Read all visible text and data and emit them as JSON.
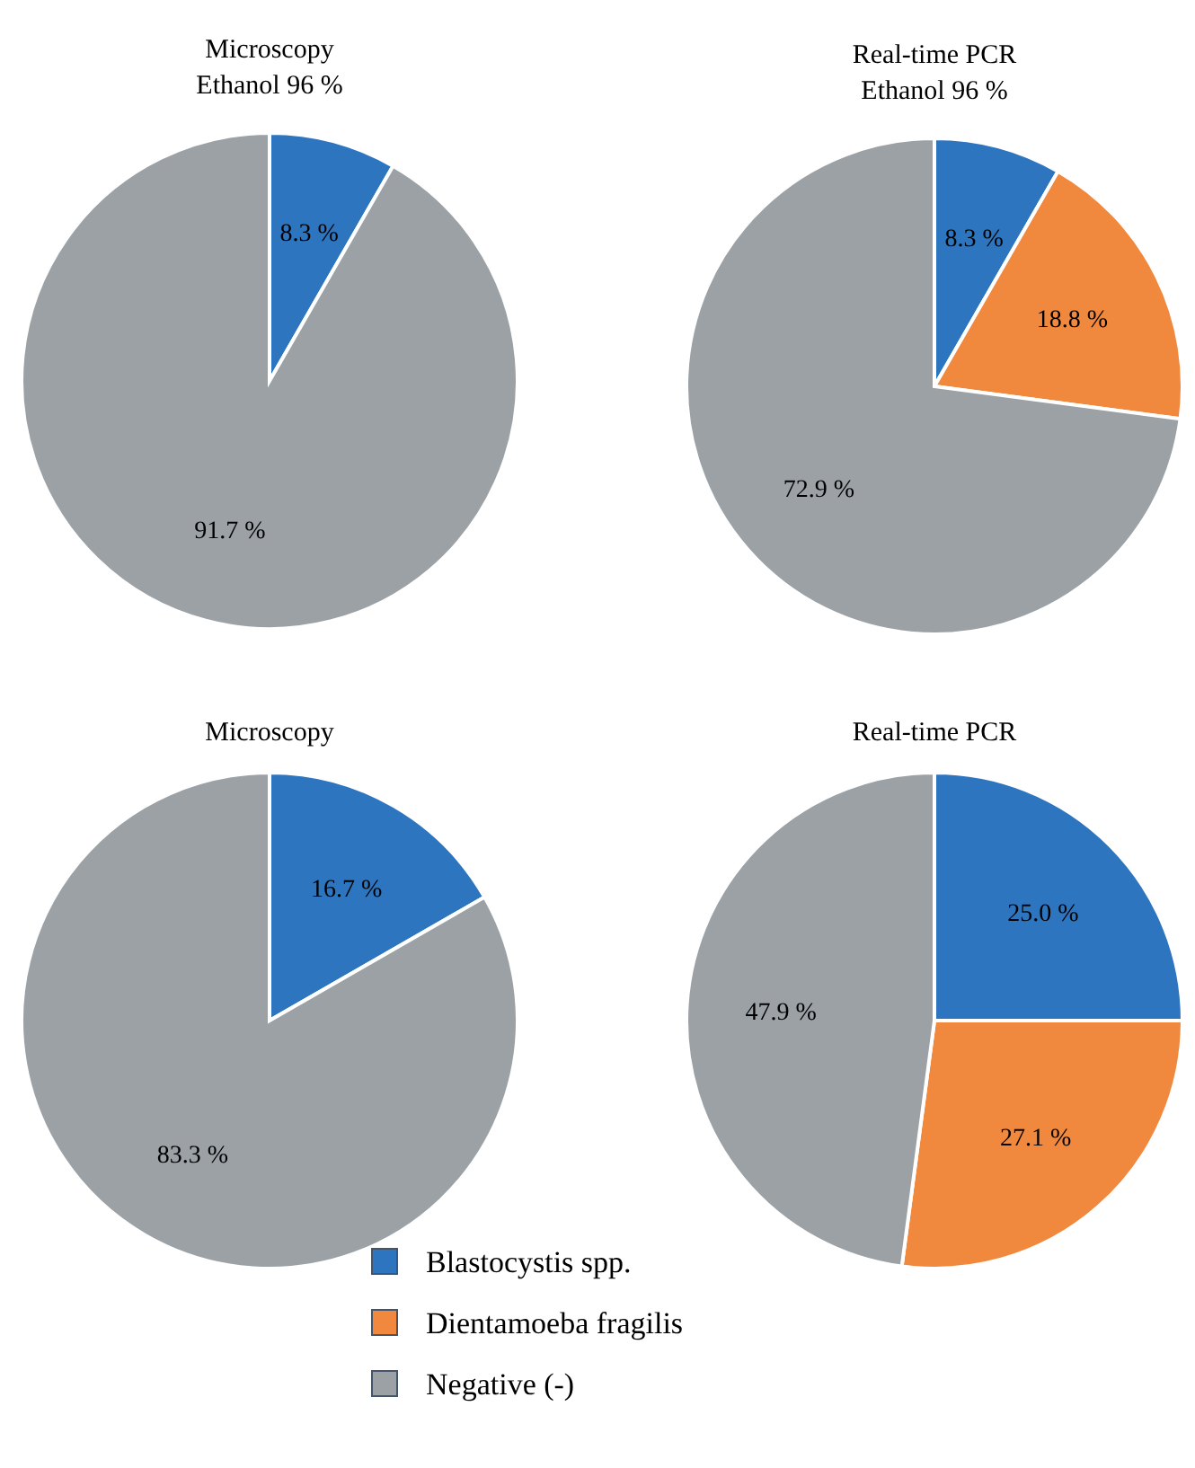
{
  "chart_data": [
    {
      "type": "pie",
      "title": "Microscopy",
      "subtitle": "Ethanol 96 %",
      "categories": [
        null,
        null
      ],
      "values": [
        8.3,
        91.7
      ],
      "colors": [
        "#2e75c0",
        "#9ba1a5"
      ],
      "value_labels": [
        "8.3 %",
        "91.7 %"
      ]
    },
    {
      "type": "pie",
      "title": "Real-time PCR",
      "subtitle": "Ethanol 96 %",
      "categories": [
        null,
        null,
        null
      ],
      "values": [
        8.3,
        18.8,
        72.9
      ],
      "colors": [
        "#2e75c0",
        "#f0883e",
        "#9ba1a5"
      ],
      "value_labels": [
        "8.3 %",
        "18.8 %",
        "72.9 %"
      ]
    },
    {
      "type": "pie",
      "title": "Microscopy",
      "categories": [
        null,
        null
      ],
      "values": [
        16.7,
        83.3
      ],
      "colors": [
        "#2e75c0",
        "#9ba1a5"
      ],
      "value_labels": [
        "16.7 %",
        "83.3 %"
      ]
    },
    {
      "type": "pie",
      "title": "Real-time PCR",
      "categories": [
        "Blastocystis spp.",
        "Dientamoeba fragilis",
        "Negative (-)"
      ],
      "values": [
        25.0,
        27.1,
        47.9
      ],
      "colors": [
        "#2e75c0",
        "#f0883e",
        "#9ba1a5"
      ],
      "value_labels": [
        "25.0 %",
        "27.1 %",
        "47.9 %"
      ],
      "legend": "bottom"
    }
  ]
}
